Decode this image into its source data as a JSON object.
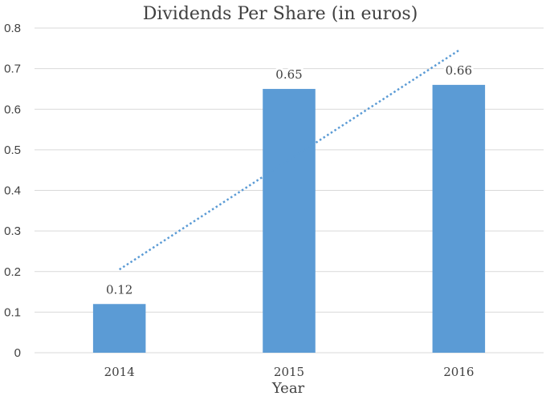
{
  "chart_data": {
    "type": "bar",
    "title": "Dividends Per Share (in euros)",
    "xlabel": "Year",
    "ylabel": "",
    "categories": [
      "2014",
      "2015",
      "2016"
    ],
    "values": [
      0.12,
      0.65,
      0.66
    ],
    "data_labels": [
      "0.12",
      "0.65",
      "0.66"
    ],
    "ylim": [
      0,
      0.8
    ],
    "yticks": [
      0,
      0.1,
      0.2,
      0.3,
      0.4,
      0.5,
      0.6,
      0.7,
      0.8
    ],
    "ytick_labels": [
      "0",
      "0.1",
      "0.2",
      "0.3",
      "0.4",
      "0.5",
      "0.6",
      "0.7",
      "0.8"
    ],
    "grid": true,
    "legend": "none",
    "trendline": {
      "type": "linear",
      "style": "dotted",
      "start": 0.205,
      "end": 0.745
    },
    "colors": {
      "bar": "#5b9bd5",
      "trendline": "#5b9bd5",
      "grid": "#d9d9d9",
      "text": "#404040"
    }
  }
}
